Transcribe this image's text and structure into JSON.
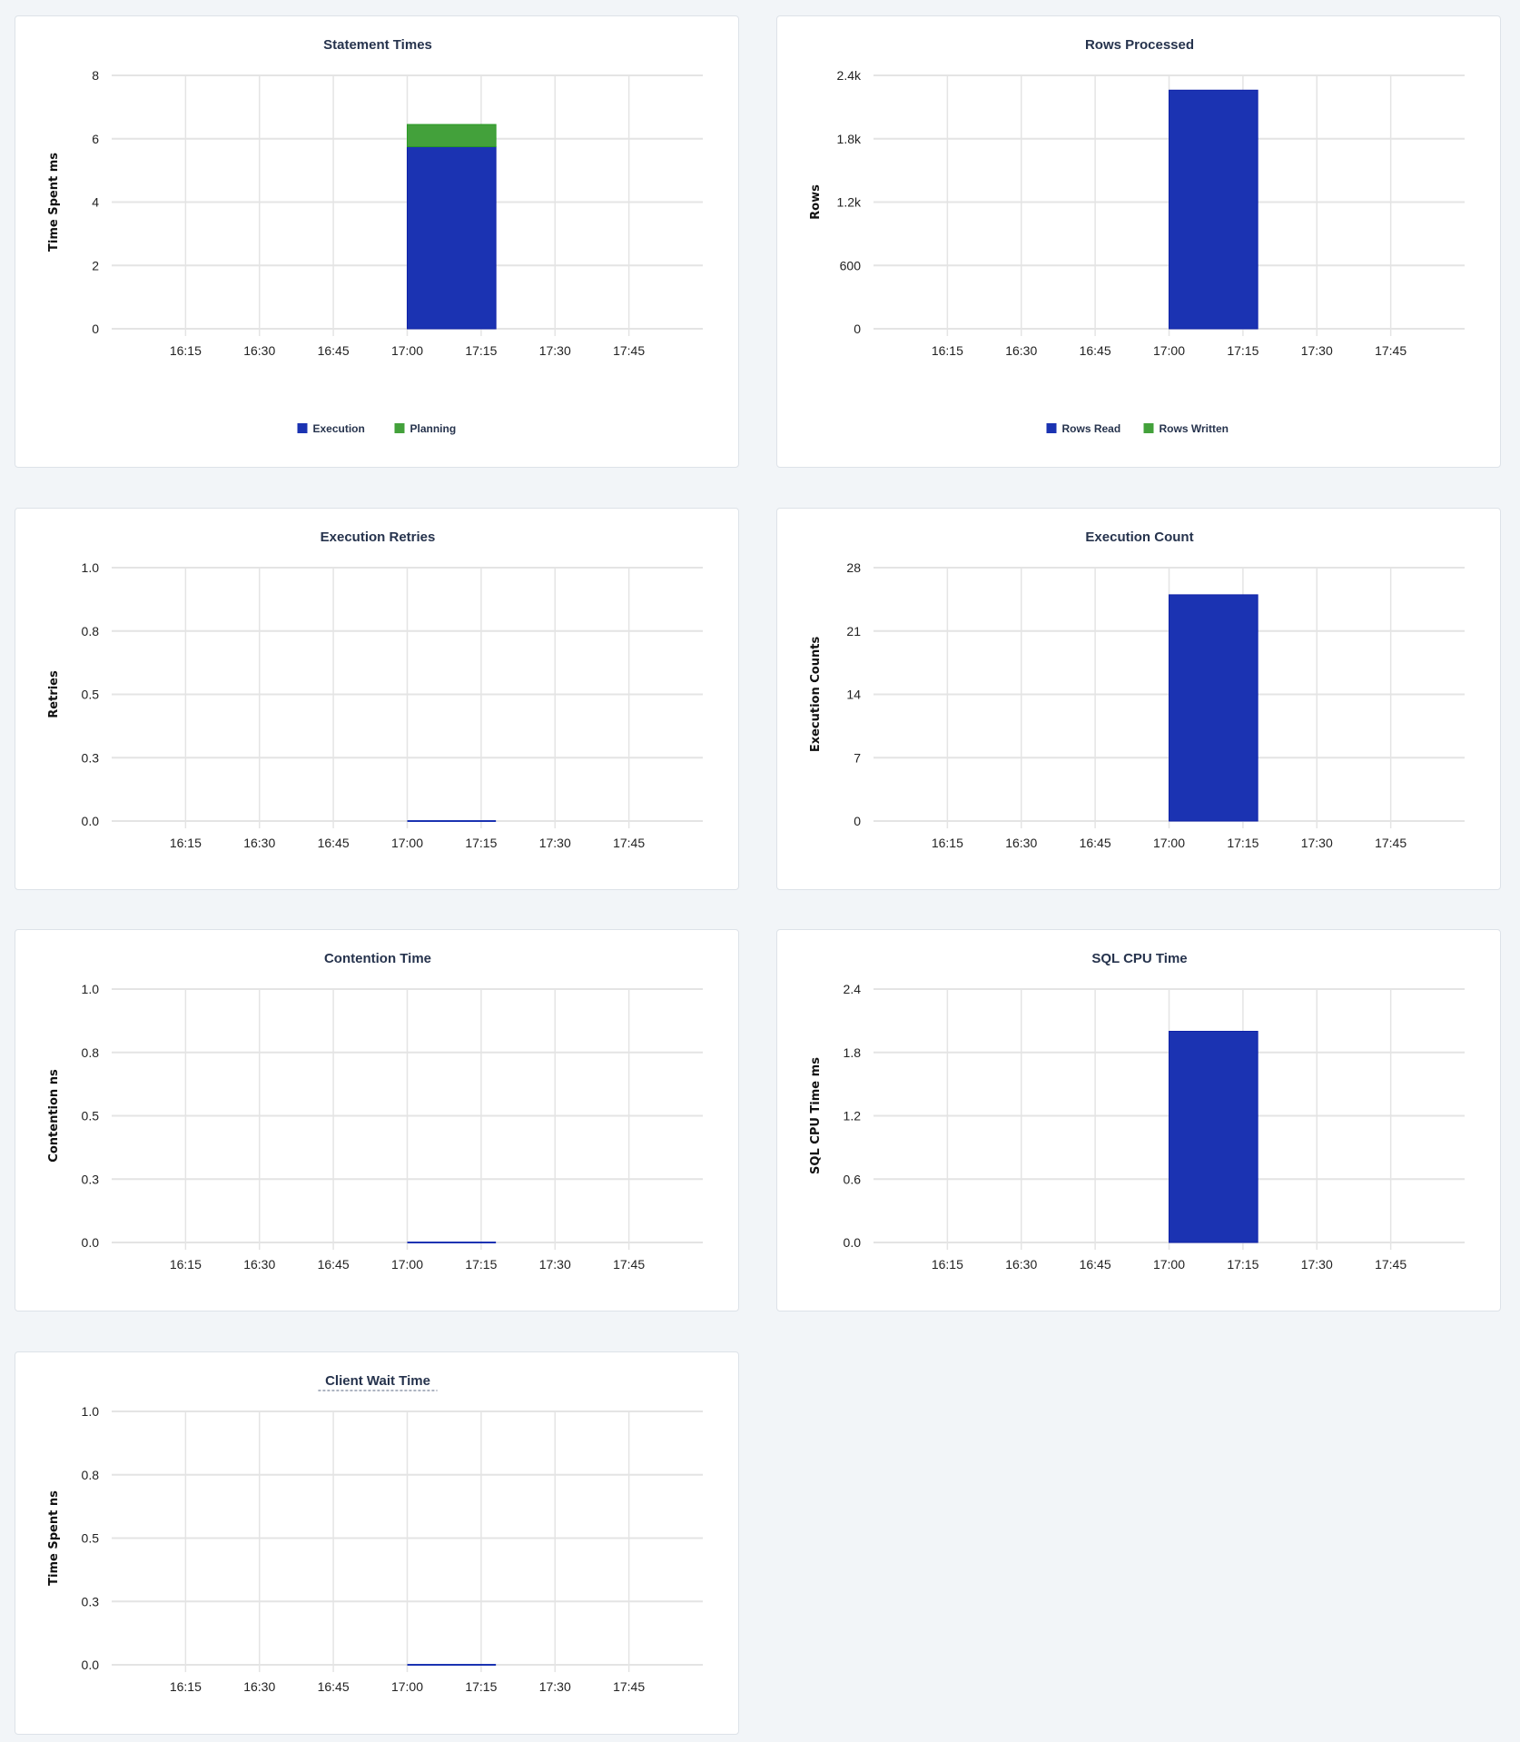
{
  "colors": {
    "execution": "#1b33b2",
    "planning": "#43a13b",
    "grid": "#e4e4e4",
    "title": "#26334d"
  },
  "chart_data": [
    {
      "type": "bar",
      "stacked": true,
      "title": "Statement Times",
      "ylabel": "Time Spent ms",
      "ylim": [
        0,
        8
      ],
      "yticks": [
        {
          "v": 0,
          "l": "0"
        },
        {
          "v": 2,
          "l": "2"
        },
        {
          "v": 4,
          "l": "4"
        },
        {
          "v": 6,
          "l": "6"
        },
        {
          "v": 8,
          "l": "8"
        }
      ],
      "xlim": [
        "16:00",
        "18:00"
      ],
      "xticks": [
        "16:15",
        "16:30",
        "16:45",
        "17:00",
        "17:15",
        "17:30",
        "17:45"
      ],
      "grid": true,
      "legend": "bottom",
      "series": [
        {
          "name": "Execution",
          "color": "#1b33b2",
          "bars": [
            {
              "x_start": "17:00",
              "x_end": "17:18",
              "value": 5.75
            }
          ]
        },
        {
          "name": "Planning",
          "color": "#43a13b",
          "bars": [
            {
              "x_start": "17:00",
              "x_end": "17:18",
              "value": 0.7
            }
          ]
        }
      ]
    },
    {
      "type": "bar",
      "stacked": true,
      "title": "Rows Processed",
      "ylabel": "Rows",
      "ylim": [
        0,
        2400
      ],
      "yticks": [
        {
          "v": 0,
          "l": "0"
        },
        {
          "v": 600,
          "l": "600"
        },
        {
          "v": 1200,
          "l": "1.2k"
        },
        {
          "v": 1800,
          "l": "1.8k"
        },
        {
          "v": 2400,
          "l": "2.4k"
        }
      ],
      "xlim": [
        "16:00",
        "18:00"
      ],
      "xticks": [
        "16:15",
        "16:30",
        "16:45",
        "17:00",
        "17:15",
        "17:30",
        "17:45"
      ],
      "grid": true,
      "legend": "bottom",
      "series": [
        {
          "name": "Rows Read",
          "color": "#1b33b2",
          "bars": [
            {
              "x_start": "17:00",
              "x_end": "17:18",
              "value": 2260
            }
          ]
        },
        {
          "name": "Rows Written",
          "color": "#43a13b",
          "bars": [
            {
              "x_start": "17:00",
              "x_end": "17:18",
              "value": 0
            }
          ]
        }
      ]
    },
    {
      "type": "bar",
      "title": "Execution Retries",
      "ylabel": "Retries",
      "ylim": [
        0,
        1
      ],
      "yticks": [
        {
          "v": 0,
          "l": "0.0"
        },
        {
          "v": 0.25,
          "l": "0.3"
        },
        {
          "v": 0.5,
          "l": "0.5"
        },
        {
          "v": 0.75,
          "l": "0.8"
        },
        {
          "v": 1,
          "l": "1.0"
        }
      ],
      "xlim": [
        "16:00",
        "18:00"
      ],
      "xticks": [
        "16:15",
        "16:30",
        "16:45",
        "17:00",
        "17:15",
        "17:30",
        "17:45"
      ],
      "grid": true,
      "series": [
        {
          "color": "#1b33b2",
          "bars": [
            {
              "x_start": "17:00",
              "x_end": "17:18",
              "value": 0
            }
          ]
        }
      ]
    },
    {
      "type": "bar",
      "title": "Execution Count",
      "ylabel": "Execution Counts",
      "ylim": [
        0,
        28
      ],
      "yticks": [
        {
          "v": 0,
          "l": "0"
        },
        {
          "v": 7,
          "l": "7"
        },
        {
          "v": 14,
          "l": "14"
        },
        {
          "v": 21,
          "l": "21"
        },
        {
          "v": 28,
          "l": "28"
        }
      ],
      "xlim": [
        "16:00",
        "18:00"
      ],
      "xticks": [
        "16:15",
        "16:30",
        "16:45",
        "17:00",
        "17:15",
        "17:30",
        "17:45"
      ],
      "grid": true,
      "series": [
        {
          "color": "#1b33b2",
          "bars": [
            {
              "x_start": "17:00",
              "x_end": "17:18",
              "value": 25
            }
          ]
        }
      ]
    },
    {
      "type": "bar",
      "title": "Contention Time",
      "ylabel": "Contention ns",
      "ylim": [
        0,
        1
      ],
      "yticks": [
        {
          "v": 0,
          "l": "0.0"
        },
        {
          "v": 0.25,
          "l": "0.3"
        },
        {
          "v": 0.5,
          "l": "0.5"
        },
        {
          "v": 0.75,
          "l": "0.8"
        },
        {
          "v": 1,
          "l": "1.0"
        }
      ],
      "xlim": [
        "16:00",
        "18:00"
      ],
      "xticks": [
        "16:15",
        "16:30",
        "16:45",
        "17:00",
        "17:15",
        "17:30",
        "17:45"
      ],
      "grid": true,
      "series": [
        {
          "color": "#1b33b2",
          "bars": [
            {
              "x_start": "17:00",
              "x_end": "17:18",
              "value": 0
            }
          ]
        }
      ]
    },
    {
      "type": "bar",
      "title": "SQL CPU Time",
      "ylabel": "SQL CPU Time ms",
      "ylim": [
        0,
        2.4
      ],
      "yticks": [
        {
          "v": 0,
          "l": "0.0"
        },
        {
          "v": 0.6,
          "l": "0.6"
        },
        {
          "v": 1.2,
          "l": "1.2"
        },
        {
          "v": 1.8,
          "l": "1.8"
        },
        {
          "v": 2.4,
          "l": "2.4"
        }
      ],
      "xlim": [
        "16:00",
        "18:00"
      ],
      "xticks": [
        "16:15",
        "16:30",
        "16:45",
        "17:00",
        "17:15",
        "17:30",
        "17:45"
      ],
      "grid": true,
      "series": [
        {
          "color": "#1b33b2",
          "bars": [
            {
              "x_start": "17:00",
              "x_end": "17:18",
              "value": 2.0
            }
          ]
        }
      ]
    },
    {
      "type": "bar",
      "title": "Client Wait Time",
      "title_underlined": true,
      "ylabel": "Time Spent ns",
      "ylim": [
        0,
        1
      ],
      "yticks": [
        {
          "v": 0,
          "l": "0.0"
        },
        {
          "v": 0.25,
          "l": "0.3"
        },
        {
          "v": 0.5,
          "l": "0.5"
        },
        {
          "v": 0.75,
          "l": "0.8"
        },
        {
          "v": 1,
          "l": "1.0"
        }
      ],
      "xlim": [
        "16:00",
        "18:00"
      ],
      "xticks": [
        "16:15",
        "16:30",
        "16:45",
        "17:00",
        "17:15",
        "17:30",
        "17:45"
      ],
      "grid": true,
      "series": [
        {
          "color": "#1b33b2",
          "bars": [
            {
              "x_start": "17:00",
              "x_end": "17:18",
              "value": 0
            }
          ]
        }
      ]
    }
  ]
}
